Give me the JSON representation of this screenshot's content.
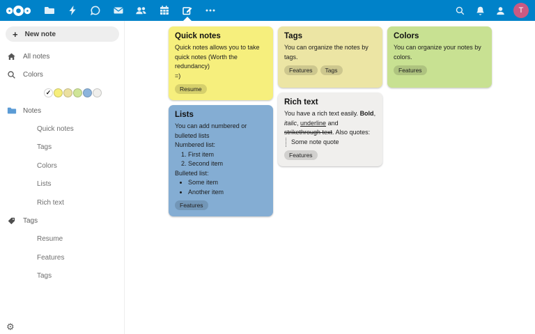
{
  "colors": {
    "header_bg": "#0082c9",
    "avatar_bg": "#ca5a82",
    "sidebar_folder": "#5b9bd5"
  },
  "header": {
    "app_icons": [
      "nextcloud-logo",
      "files",
      "activity",
      "talk",
      "mail",
      "contacts",
      "calendar",
      "notes",
      "more-apps"
    ],
    "active_app": "notes",
    "right_icons": [
      "search",
      "notifications",
      "contacts-menu",
      "avatar"
    ],
    "user_initial": "T"
  },
  "sidebar": {
    "new_note_label": "New note",
    "all_notes_label": "All notes",
    "colors_label": "Colors",
    "color_swatches": [
      {
        "color": "#ffffff",
        "checked": true
      },
      {
        "color": "#f6ee7a"
      },
      {
        "color": "#ebe0a0"
      },
      {
        "color": "#cfe597"
      },
      {
        "color": "#8cb4dc"
      },
      {
        "color": "#f0efec"
      }
    ],
    "notes_section_label": "Notes",
    "notes_items": [
      "Quick notes",
      "Tags",
      "Colors",
      "Lists",
      "Rich text"
    ],
    "tags_section_label": "Tags",
    "tags_items": [
      "Resume",
      "Features",
      "Tags"
    ],
    "settings_icon": "gear-icon"
  },
  "cards": {
    "quick_notes": {
      "title": "Quick notes",
      "body": "Quick notes allows you to take quick notes (Worth the redundancy)",
      "body2": "=)",
      "tags": [
        "Resume"
      ],
      "color": "#f6ef7d"
    },
    "tags": {
      "title": "Tags",
      "body": "You can organize the notes by tags.",
      "tags": [
        "Features",
        "Tags"
      ],
      "color": "#ece5a4"
    },
    "colors": {
      "title": "Colors",
      "body": "You can organize your notes by colors.",
      "tags": [
        "Features"
      ],
      "color": "#c8e192"
    },
    "lists": {
      "title": "Lists",
      "intro": "You can add numbered or bulleted lists",
      "numbered_label": "Numbered list:",
      "numbered_items": [
        "First item",
        "Second item"
      ],
      "bulleted_label": "Bulleted list:",
      "bulleted_items": [
        "Some item",
        "Another item"
      ],
      "tags": [
        "Features"
      ],
      "color": "#84add3"
    },
    "rich_text": {
      "title": "Rich text",
      "segments": [
        {
          "text": "You have a rich text easily.  "
        },
        {
          "text": "Bold",
          "bold": true
        },
        {
          "text": ", "
        },
        {
          "text": "italic",
          "italic": true
        },
        {
          "text": ", "
        },
        {
          "text": "underline",
          "underline": true
        },
        {
          "text": " and "
        },
        {
          "text": "strikethrough text",
          "strike": true
        },
        {
          "text": ". Also quotes:"
        }
      ],
      "quote": "Some note quote",
      "tags": [
        "Features"
      ],
      "color": "#f0efed"
    }
  }
}
